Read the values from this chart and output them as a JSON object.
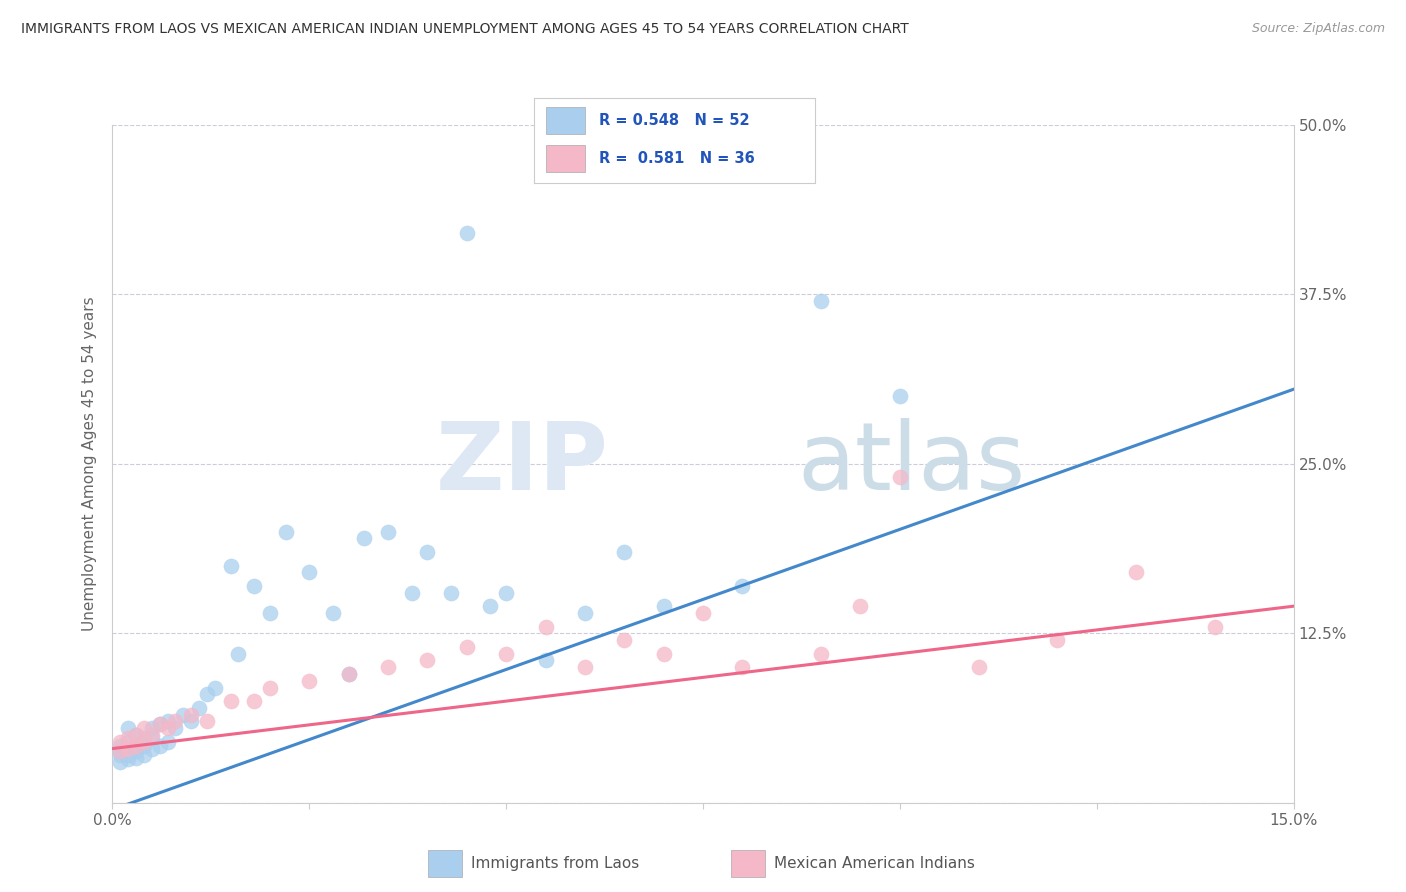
{
  "title": "IMMIGRANTS FROM LAOS VS MEXICAN AMERICAN INDIAN UNEMPLOYMENT AMONG AGES 45 TO 54 YEARS CORRELATION CHART",
  "source": "Source: ZipAtlas.com",
  "ylabel": "Unemployment Among Ages 45 to 54 years",
  "xlim": [
    0.0,
    0.15
  ],
  "ylim": [
    0.0,
    0.5
  ],
  "xticks": [
    0.0,
    0.025,
    0.05,
    0.075,
    0.1,
    0.125,
    0.15
  ],
  "xticklabels": [
    "0.0%",
    "",
    "",
    "",
    "",
    "",
    "15.0%"
  ],
  "yticks": [
    0.0,
    0.125,
    0.25,
    0.375,
    0.5
  ],
  "right_yticklabels": [
    "",
    "12.5%",
    "25.0%",
    "37.5%",
    "50.0%"
  ],
  "blue_color": "#aacfee",
  "pink_color": "#f4b8c8",
  "blue_line_color": "#4488cc",
  "pink_line_color": "#ee6688",
  "grid_color": "#ccccdd",
  "background_color": "#ffffff",
  "legend_label1": "Immigrants from Laos",
  "legend_label2": "Mexican American Indians",
  "blue_x": [
    0.001,
    0.001,
    0.001,
    0.001,
    0.002,
    0.002,
    0.002,
    0.002,
    0.002,
    0.003,
    0.003,
    0.003,
    0.003,
    0.004,
    0.004,
    0.004,
    0.005,
    0.005,
    0.005,
    0.006,
    0.006,
    0.007,
    0.007,
    0.008,
    0.009,
    0.01,
    0.011,
    0.012,
    0.013,
    0.015,
    0.016,
    0.018,
    0.02,
    0.022,
    0.025,
    0.028,
    0.03,
    0.032,
    0.035,
    0.038,
    0.04,
    0.043,
    0.045,
    0.048,
    0.05,
    0.055,
    0.06,
    0.065,
    0.07,
    0.08,
    0.09,
    0.1
  ],
  "blue_y": [
    0.03,
    0.035,
    0.038,
    0.042,
    0.032,
    0.035,
    0.04,
    0.045,
    0.055,
    0.033,
    0.038,
    0.042,
    0.05,
    0.035,
    0.042,
    0.048,
    0.04,
    0.048,
    0.055,
    0.042,
    0.058,
    0.045,
    0.06,
    0.055,
    0.065,
    0.06,
    0.07,
    0.08,
    0.085,
    0.175,
    0.11,
    0.16,
    0.14,
    0.2,
    0.17,
    0.14,
    0.095,
    0.195,
    0.2,
    0.155,
    0.185,
    0.155,
    0.42,
    0.145,
    0.155,
    0.105,
    0.14,
    0.185,
    0.145,
    0.16,
    0.37,
    0.3
  ],
  "pink_x": [
    0.001,
    0.001,
    0.002,
    0.002,
    0.003,
    0.003,
    0.004,
    0.004,
    0.005,
    0.006,
    0.007,
    0.008,
    0.01,
    0.012,
    0.015,
    0.018,
    0.02,
    0.025,
    0.03,
    0.035,
    0.04,
    0.045,
    0.05,
    0.055,
    0.06,
    0.065,
    0.07,
    0.075,
    0.08,
    0.09,
    0.095,
    0.1,
    0.11,
    0.12,
    0.13,
    0.14
  ],
  "pink_y": [
    0.038,
    0.045,
    0.04,
    0.048,
    0.042,
    0.05,
    0.045,
    0.055,
    0.05,
    0.058,
    0.055,
    0.06,
    0.065,
    0.06,
    0.075,
    0.075,
    0.085,
    0.09,
    0.095,
    0.1,
    0.105,
    0.115,
    0.11,
    0.13,
    0.1,
    0.12,
    0.11,
    0.14,
    0.1,
    0.11,
    0.145,
    0.24,
    0.1,
    0.12,
    0.17,
    0.13
  ],
  "blue_line_x": [
    0.0,
    0.15
  ],
  "blue_line_y": [
    -0.005,
    0.305
  ],
  "pink_line_x": [
    0.0,
    0.15
  ],
  "pink_line_y": [
    0.04,
    0.145
  ]
}
